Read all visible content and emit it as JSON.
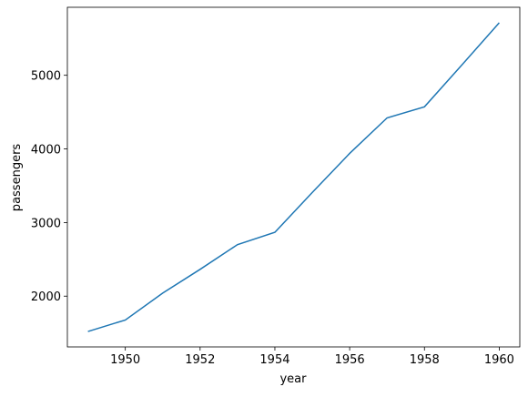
{
  "chart_data": {
    "type": "line",
    "x_label": "year",
    "y_label": "passengers",
    "x": [
      1949,
      1950,
      1951,
      1952,
      1953,
      1954,
      1955,
      1956,
      1957,
      1958,
      1959,
      1960
    ],
    "series": [
      {
        "color": "#1f77b4",
        "values": [
          1520,
          1676,
          2042,
          2364,
          2700,
          2867,
          3408,
          3939,
          4421,
          4572,
          5140,
          5714
        ]
      }
    ],
    "xlim": [
      1948.45,
      1960.55
    ],
    "xticks": [
      1950,
      1952,
      1954,
      1956,
      1958,
      1960
    ],
    "ylim": [
      1310.3,
      5923.7
    ],
    "yticks": [
      2000,
      3000,
      4000,
      5000
    ]
  }
}
